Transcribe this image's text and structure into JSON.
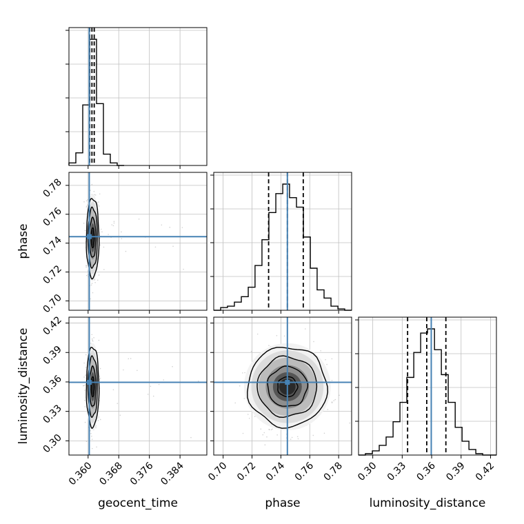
{
  "chart_data": {
    "type": "corner",
    "parameters": [
      "geocent_time",
      "phase",
      "luminosity_distance"
    ],
    "truths": {
      "geocent_time": 0.3603,
      "phase": 0.7445,
      "luminosity_distance": 0.3596
    },
    "quantiles": {
      "geocent_time": [
        0.3604,
        0.361,
        0.3616
      ],
      "phase": [
        0.7315,
        0.7445,
        0.7555
      ],
      "luminosity_distance": [
        0.3355,
        0.355,
        0.3745
      ]
    },
    "ranges": {
      "geocent_time": [
        0.355,
        0.391
      ],
      "phase": [
        0.6935,
        0.789
      ],
      "luminosity_distance": [
        0.2855,
        0.426
      ]
    },
    "ticks": {
      "geocent_time": [
        "0.360",
        "0.368",
        "0.376",
        "0.384"
      ],
      "phase": [
        "0.70",
        "0.72",
        "0.74",
        "0.76",
        "0.78"
      ],
      "luminosity_distance": [
        "0.30",
        "0.33",
        "0.36",
        "0.39",
        "0.42"
      ]
    },
    "histograms": {
      "geocent_time": {
        "edges": [
          0.355,
          0.3568,
          0.3586,
          0.3604,
          0.3622,
          0.364,
          0.3658,
          0.3676,
          0.3694
        ],
        "counts": [
          2,
          10,
          48,
          100,
          49,
          9,
          2,
          0
        ]
      },
      "phase": {
        "edges": [
          0.6935,
          0.6983,
          0.703,
          0.7078,
          0.7126,
          0.7174,
          0.7221,
          0.7269,
          0.7317,
          0.7365,
          0.7413,
          0.746,
          0.7508,
          0.7556,
          0.7604,
          0.7651,
          0.7699,
          0.7747,
          0.7795,
          0.7842,
          0.789
        ],
        "counts": [
          0,
          2,
          3,
          6,
          10,
          17,
          33,
          52,
          72,
          86,
          93,
          83,
          76,
          54,
          31,
          15,
          9,
          3,
          1,
          0
        ]
      },
      "luminosity_distance": {
        "edges": [
          0.2855,
          0.2925,
          0.2996,
          0.3066,
          0.3136,
          0.3207,
          0.3277,
          0.3347,
          0.3418,
          0.3488,
          0.3558,
          0.3629,
          0.3699,
          0.3769,
          0.384,
          0.391,
          0.398,
          0.405,
          0.412,
          0.419,
          0.426
        ],
        "counts": [
          0,
          1,
          3,
          7,
          13,
          24,
          38,
          56,
          74,
          88,
          91,
          76,
          58,
          38,
          20,
          10,
          4,
          1,
          0,
          0
        ]
      }
    },
    "pairs": [
      {
        "x": "geocent_time",
        "y": "phase",
        "sx": 0.00075,
        "sy": 0.0125
      },
      {
        "x": "geocent_time",
        "y": "luminosity_distance",
        "sx": 0.00075,
        "sy": 0.0185
      },
      {
        "x": "phase",
        "y": "luminosity_distance",
        "sx": 0.0125,
        "sy": 0.0185
      }
    ],
    "contour_levels": [
      0.5,
      1.0,
      1.5,
      2.0
    ],
    "colors": {
      "truth": "#4682b4",
      "ink": "#000000",
      "grid": "#bfbfbf",
      "scatter": "#9a9a9a"
    },
    "grid": true
  }
}
